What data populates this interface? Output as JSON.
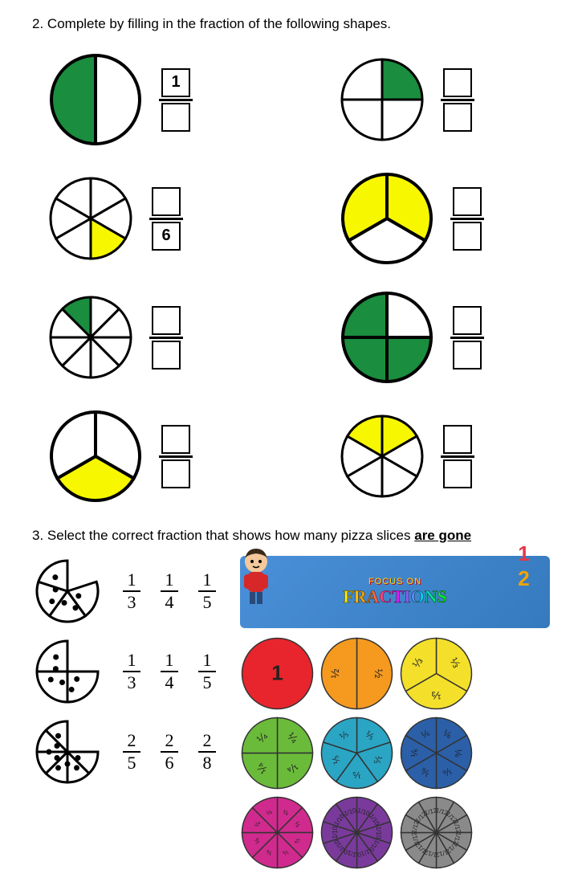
{
  "q2": {
    "number": "2.",
    "text": "Complete by filling in the fraction of the following shapes.",
    "shapes": [
      {
        "slices": 2,
        "filled": [
          1
        ],
        "color": "#1a8d3e",
        "stroke": 4,
        "radius": 55,
        "numerator": "1",
        "denominator": ""
      },
      {
        "slices": 4,
        "filled": [
          0
        ],
        "color": "#1a8d3e",
        "stroke": 3,
        "radius": 50,
        "numerator": "",
        "denominator": ""
      },
      {
        "slices": 6,
        "filled": [
          2
        ],
        "color": "#f7f700",
        "stroke": 3,
        "radius": 50,
        "numerator": "",
        "denominator": "6"
      },
      {
        "slices": 3,
        "filled": [
          0,
          2
        ],
        "color": "#f7f700",
        "stroke": 4,
        "radius": 55,
        "numerator": "",
        "denominator": ""
      },
      {
        "slices": 8,
        "filled": [
          7
        ],
        "color": "#1a8d3e",
        "stroke": 3,
        "radius": 50,
        "numerator": "",
        "denominator": ""
      },
      {
        "slices": 4,
        "filled": [
          1,
          2,
          3
        ],
        "color": "#1a8d3e",
        "stroke": 4,
        "radius": 55,
        "numerator": "",
        "denominator": ""
      },
      {
        "slices": 3,
        "filled": [
          1
        ],
        "color": "#f7f700",
        "stroke": 4,
        "radius": 55,
        "numerator": "",
        "denominator": ""
      },
      {
        "slices": 6,
        "filled": [
          0,
          5
        ],
        "color": "#f7f700",
        "stroke": 3,
        "radius": 50,
        "numerator": "",
        "denominator": ""
      }
    ]
  },
  "q3": {
    "number": "3.",
    "text_part1": "Select the correct fraction that shows how many pizza slices ",
    "text_underline": "are gone",
    "pizzas": [
      {
        "slices": 5,
        "missing": 1,
        "toppings": 6,
        "choices": [
          {
            "n": "1",
            "d": "3"
          },
          {
            "n": "1",
            "d": "4"
          },
          {
            "n": "1",
            "d": "5"
          }
        ]
      },
      {
        "slices": 4,
        "missing": 1,
        "toppings": 6,
        "choices": [
          {
            "n": "1",
            "d": "3"
          },
          {
            "n": "1",
            "d": "4"
          },
          {
            "n": "1",
            "d": "5"
          }
        ]
      },
      {
        "slices": 8,
        "missing": 2,
        "toppings": 8,
        "choices": [
          {
            "n": "2",
            "d": "5"
          },
          {
            "n": "2",
            "d": "6"
          },
          {
            "n": "2",
            "d": "8"
          }
        ]
      }
    ],
    "banner": {
      "focus": "FOCUS ON",
      "fractions": "FRACTIONS"
    },
    "half_badge": {
      "n": "1",
      "d": "2",
      "n_color": "#e63946",
      "d_color": "#f4a300"
    },
    "color_circles": [
      {
        "parts": 1,
        "color": "#e8252c",
        "label": "1"
      },
      {
        "parts": 2,
        "color": "#f59a1f",
        "label": "½"
      },
      {
        "parts": 3,
        "color": "#f4e02a",
        "label": "⅓"
      },
      {
        "parts": 4,
        "color": "#6bbb3a",
        "label": "¼"
      },
      {
        "parts": 5,
        "color": "#2ba5c4",
        "label": "⅕"
      },
      {
        "parts": 6,
        "color": "#2b5fa8",
        "label": "⅙"
      },
      {
        "parts": 8,
        "color": "#d12a8e",
        "label": "⅛"
      },
      {
        "parts": 10,
        "color": "#7a3a9c",
        "label": "1/10"
      },
      {
        "parts": 12,
        "color": "#8a8a8a",
        "label": "1/12"
      }
    ]
  },
  "colors": {
    "black": "#000000",
    "white": "#ffffff"
  }
}
